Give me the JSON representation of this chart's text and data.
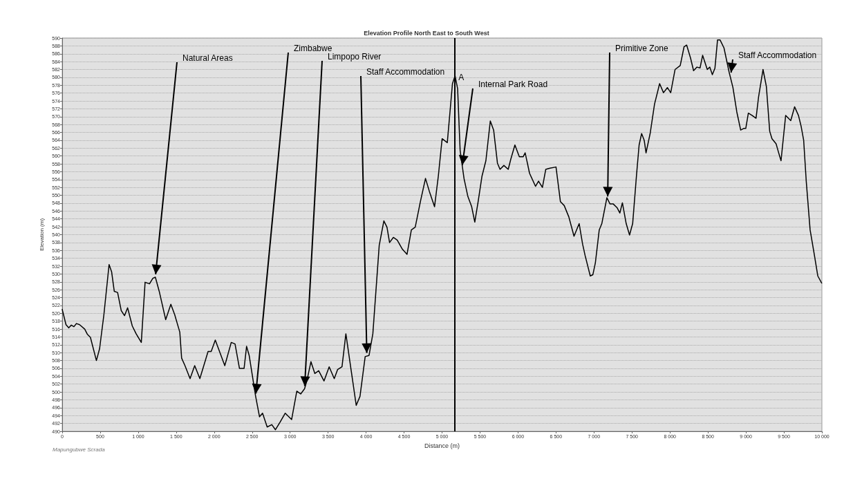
{
  "chart_data": {
    "type": "line",
    "title": "Elevation Profile North East to South West",
    "xlabel": "Distance (m)",
    "ylabel": "Elevation (m)",
    "xlim": [
      0,
      10000
    ],
    "ylim": [
      490,
      590
    ],
    "xticks": [
      0,
      500,
      {
        "value": 1000,
        "label": "1 000"
      },
      {
        "value": 1500,
        "label": "1 500"
      },
      {
        "value": 2000,
        "label": "2 000"
      },
      {
        "value": 2500,
        "label": "2 500"
      },
      {
        "value": 3000,
        "label": "3 000"
      },
      {
        "value": 3500,
        "label": "3 500"
      },
      {
        "value": 4000,
        "label": "4 000"
      },
      {
        "value": 4500,
        "label": "4 500"
      },
      {
        "value": 5000,
        "label": "5 000"
      },
      {
        "value": 5500,
        "label": "5 500"
      },
      {
        "value": 6000,
        "label": "6 000"
      },
      {
        "value": 6500,
        "label": "6 500"
      },
      {
        "value": 7000,
        "label": "7 000"
      },
      {
        "value": 7500,
        "label": "7 500"
      },
      {
        "value": 8000,
        "label": "8 000"
      },
      {
        "value": 8500,
        "label": "8 500"
      },
      {
        "value": 9000,
        "label": "9 000"
      },
      {
        "value": 9500,
        "label": "9 500"
      },
      {
        "value": 10000,
        "label": "10 000"
      }
    ],
    "yticks": [
      490,
      492,
      494,
      496,
      498,
      500,
      502,
      504,
      506,
      508,
      510,
      512,
      514,
      516,
      518,
      520,
      522,
      524,
      526,
      528,
      530,
      532,
      534,
      536,
      538,
      540,
      542,
      544,
      546,
      548,
      550,
      552,
      554,
      556,
      558,
      560,
      562,
      564,
      566,
      568,
      570,
      572,
      574,
      576,
      578,
      580,
      582,
      584,
      586,
      588,
      590
    ],
    "grid": "y",
    "marker": "none",
    "x": [
      0,
      50,
      86,
      120,
      154,
      188,
      229,
      296,
      330,
      371,
      450,
      492,
      549,
      617,
      651,
      685,
      729,
      777,
      820,
      861,
      922,
      973,
      1041,
      1091,
      1149,
      1193,
      1226,
      1277,
      1362,
      1430,
      1480,
      1548,
      1572,
      1616,
      1683,
      1744,
      1812,
      1920,
      1961,
      2015,
      2140,
      2225,
      2275,
      2333,
      2394,
      2427,
      2461,
      2546,
      2597,
      2637,
      2698,
      2759,
      2807,
      2867,
      2935,
      3020,
      3088,
      3139,
      3190,
      3224,
      3274,
      3325,
      3376,
      3446,
      3514,
      3581,
      3625,
      3683,
      3734,
      3870,
      3920,
      3988,
      4039,
      4089,
      4173,
      4234,
      4275,
      4309,
      4359,
      4410,
      4478,
      4539,
      4596,
      4647,
      4715,
      4782,
      4833,
      4901,
      4951,
      5001,
      5069,
      5137,
      5171,
      5205,
      5238,
      5289,
      5340,
      5390,
      5431,
      5475,
      5526,
      5577,
      5635,
      5679,
      5729,
      5763,
      5814,
      5871,
      5905,
      5959,
      6017,
      6067,
      6094,
      6152,
      6230,
      6270,
      6321,
      6365,
      6422,
      6500,
      6558,
      6608,
      6669,
      6737,
      6805,
      6850,
      6883,
      6951,
      6985,
      7018,
      7069,
      7103,
      7170,
      7211,
      7254,
      7306,
      7340,
      7374,
      7424,
      7468,
      7509,
      7560,
      7594,
      7627,
      7661,
      7685,
      7739,
      7797,
      7864,
      7915,
      7966,
      8010,
      8067,
      8135,
      8186,
      8220,
      8271,
      8311,
      8355,
      8396,
      8430,
      8491,
      8524,
      8558,
      8592,
      8626,
      8660,
      8711,
      8779,
      8829,
      8880,
      8931,
      8971,
      8998,
      9032,
      9083,
      9133,
      9167,
      9225,
      9269,
      9313,
      9343,
      9397,
      9431,
      9462,
      9523,
      9590,
      9641,
      9692,
      9726,
      9760,
      9794,
      9845,
      9896,
      9946,
      9997
    ],
    "series": [
      {
        "color": "#000000",
        "values": [
          521,
          517.1,
          516.3,
          517,
          516.6,
          517.4,
          517.1,
          516,
          514.7,
          513.9,
          508,
          511,
          519.7,
          532.4,
          530.5,
          525.6,
          525.3,
          520.7,
          519.4,
          521.4,
          516.8,
          514.8,
          512.6,
          527.9,
          527.5,
          528.9,
          529.2,
          525.6,
          518.4,
          522.3,
          519.7,
          515.2,
          508.6,
          506.7,
          503.4,
          506.7,
          503.4,
          510.3,
          510.3,
          513.2,
          506.7,
          512.6,
          512.2,
          506,
          506,
          511.6,
          509.3,
          498.9,
          493.7,
          494.6,
          491.1,
          491.7,
          490.4,
          492.3,
          494.6,
          493,
          500.2,
          499.5,
          500.8,
          503.1,
          507.7,
          504.7,
          505.4,
          502.8,
          506.4,
          503.4,
          505.7,
          506.4,
          514.8,
          496.6,
          498.9,
          509,
          509.3,
          514.8,
          537.3,
          543.5,
          541.9,
          538,
          539.3,
          538.6,
          536.3,
          535,
          541.2,
          541.9,
          548.4,
          554.3,
          551,
          547.1,
          554.9,
          564.4,
          563.4,
          578.4,
          580.4,
          577.1,
          561.4,
          554.3,
          549.7,
          547.1,
          543.2,
          548.4,
          554.9,
          558.8,
          568.9,
          566.6,
          558.2,
          556.6,
          557.6,
          556.6,
          559.2,
          562.8,
          559.8,
          559.8,
          560.8,
          555.6,
          552.3,
          553.6,
          552,
          556.6,
          556.9,
          557.2,
          548.4,
          547.4,
          544.5,
          539.6,
          542.8,
          537.6,
          534.7,
          529.5,
          529.8,
          532.8,
          541.2,
          542.8,
          549.4,
          547.8,
          547.8,
          546.8,
          545.5,
          548.1,
          542.8,
          539.9,
          542.8,
          555.2,
          562.8,
          565.7,
          564,
          560.8,
          565.7,
          573.2,
          578.4,
          576.1,
          577.4,
          576.1,
          582,
          583,
          587.8,
          588.2,
          584.9,
          581.7,
          582.6,
          582.4,
          585.6,
          582,
          582.6,
          580.7,
          582.3,
          589.5,
          589.5,
          587.5,
          581.3,
          577.4,
          571.2,
          566.6,
          567,
          567,
          570.9,
          570.3,
          569.6,
          575.1,
          582,
          577.7,
          566.3,
          564.4,
          563.1,
          560.8,
          558.8,
          570.3,
          569,
          572.5,
          570.3,
          567.6,
          564,
          553.6,
          541.2,
          535.4,
          529.5,
          527.7
        ]
      }
    ],
    "ref_lines": [
      {
        "axis": "x",
        "value": 5170,
        "label": "A"
      }
    ],
    "annotations": [
      {
        "text": "Natural Areas",
        "x": 1226,
        "y": 529.2
      },
      {
        "text": "Zimbabwe",
        "x": 2546,
        "y": 498.9
      },
      {
        "text": "Limpopo River",
        "x": 3190,
        "y": 500.8
      },
      {
        "text": "Staff Accommodation",
        "x": 4010,
        "y": 509.2
      },
      {
        "text": "Internal Park Road",
        "x": 5262,
        "y": 557
      },
      {
        "text": "Primitive Zone",
        "x": 7180,
        "y": 549
      },
      {
        "text": "Staff Accommodation",
        "x": 8800,
        "y": 580.5
      },
      "Mapungubwe Scrada"
    ]
  }
}
